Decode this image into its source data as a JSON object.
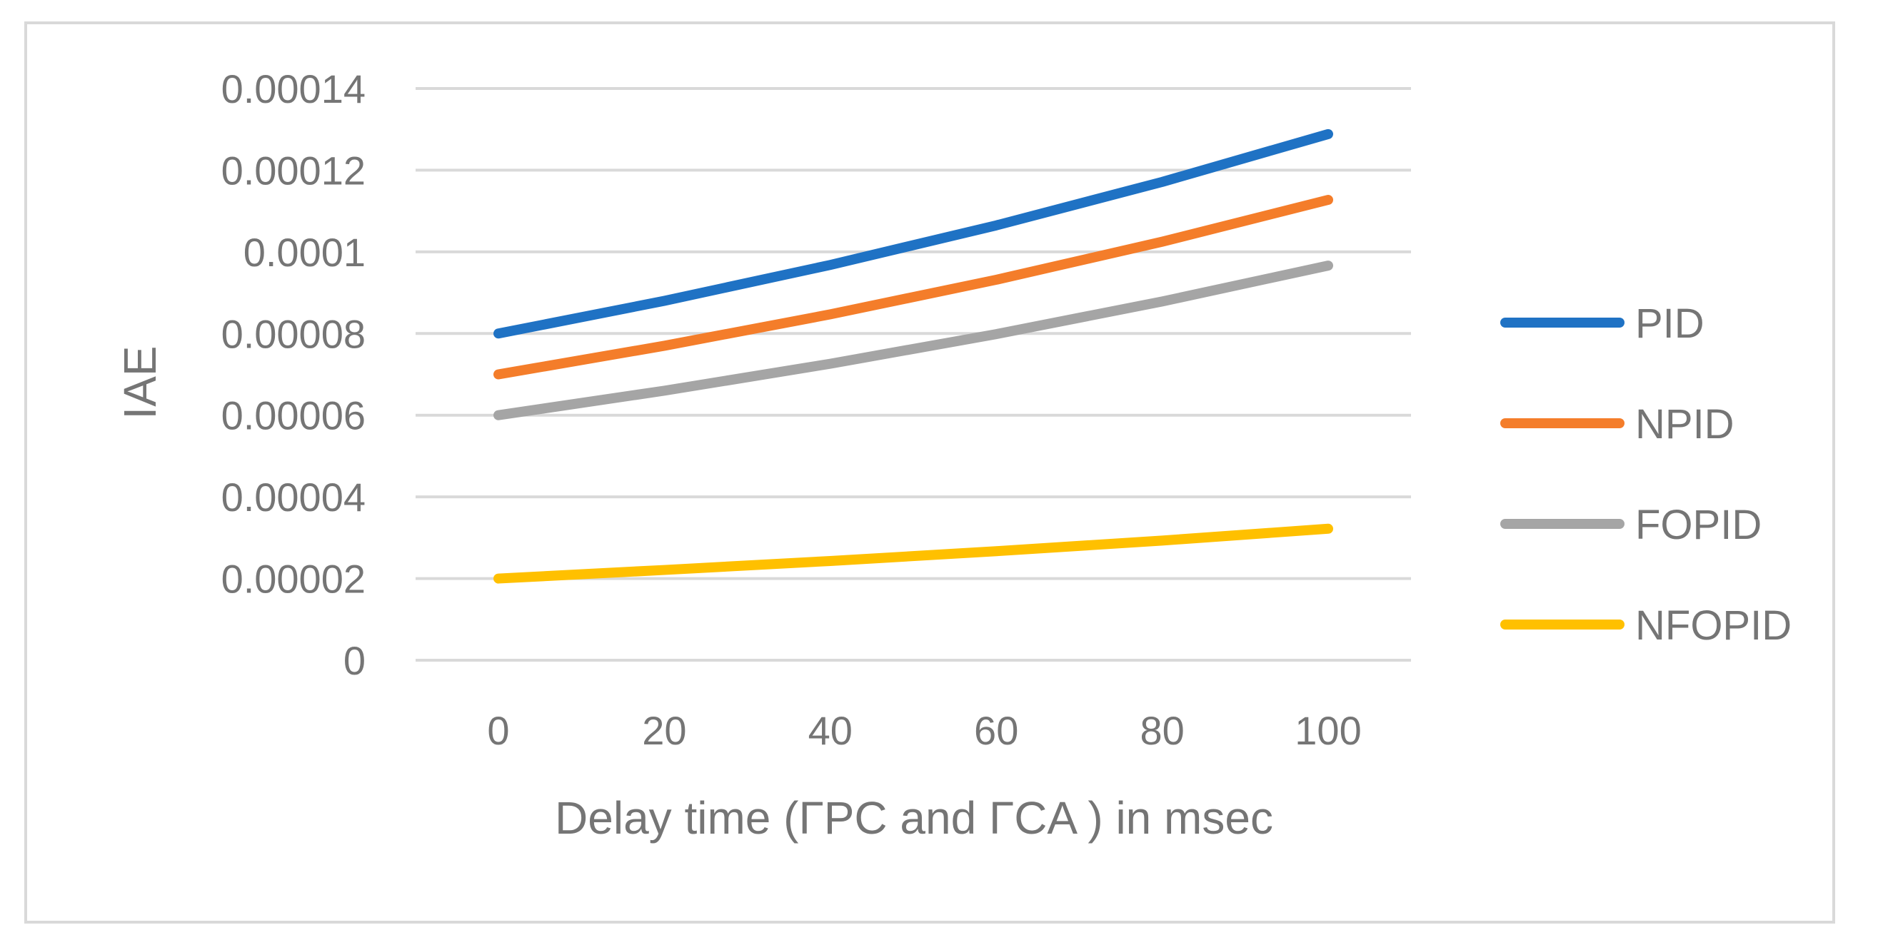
{
  "chart_data": {
    "type": "line",
    "title": "",
    "xlabel": "Delay time (ΓPC and ΓCA ) in msec",
    "ylabel": "IAE",
    "categories": [
      "0",
      "20",
      "40",
      "60",
      "80",
      "100"
    ],
    "x": [
      0,
      20,
      40,
      60,
      80,
      100
    ],
    "ylim": [
      0,
      0.00014
    ],
    "yticks": [
      "0",
      "0.00002",
      "0.00004",
      "0.00006",
      "0.00008",
      "0.0001",
      "0.00012",
      "0.00014"
    ],
    "ytick_values": [
      0,
      2e-05,
      4e-05,
      6e-05,
      8e-05,
      0.0001,
      0.00012,
      0.00014
    ],
    "grid": true,
    "legend_position": "right",
    "series": [
      {
        "name": "PID",
        "color": "#1f72c4",
        "values": [
          8e-05,
          8.8e-05,
          9.68e-05,
          0.00010648,
          0.000117128,
          0.000128841
        ]
      },
      {
        "name": "NPID",
        "color": "#f47d2a",
        "values": [
          7e-05,
          7.7e-05,
          8.47e-05,
          9.317e-05,
          0.000102487,
          0.000112736
        ]
      },
      {
        "name": "FOPID",
        "color": "#a5a5a5",
        "values": [
          6e-05,
          6.6e-05,
          7.26e-05,
          7.986e-05,
          8.7846e-05,
          9.6631e-05
        ]
      },
      {
        "name": "NFOPID",
        "color": "#ffc000",
        "values": [
          2e-05,
          2.21e-05,
          2.43e-05,
          2.67e-05,
          2.93e-05,
          3.22e-05
        ]
      }
    ]
  }
}
